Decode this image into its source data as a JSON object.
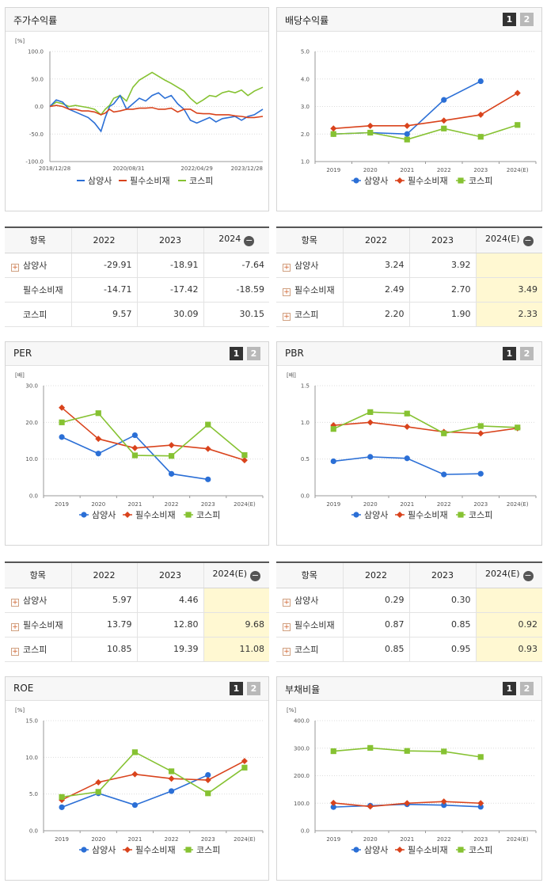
{
  "legend": {
    "items": [
      {
        "name": "삼양사",
        "color": "#2b6fd6",
        "marker": "circle"
      },
      {
        "name": "필수소비재",
        "color": "#d9431c",
        "marker": "diamond"
      },
      {
        "name": "코스피",
        "color": "#86c232",
        "marker": "square"
      }
    ]
  },
  "pager": {
    "p1": "1",
    "p2": "2"
  },
  "plus_icon": "plus-box-icon",
  "minus_icon": "minus-circle-icon",
  "panels": {
    "stock": {
      "title": "주가수익률",
      "unit": "[%]",
      "ytick_labels": [
        "100.0",
        "50.0",
        "0.0",
        "-50.0",
        "-100.0"
      ],
      "xtick_labels": [
        "2018/12/28",
        "2020/08/31",
        "2022/04/29",
        "2023/12/28"
      ]
    },
    "dividend": {
      "title": "배당수익률",
      "unit": "",
      "ytick_labels": [
        "5.0",
        "4.0",
        "3.0",
        "2.0",
        "1.0"
      ]
    },
    "per": {
      "title": "PER",
      "unit": "[배]",
      "ytick_labels": [
        "30.0",
        "20.0",
        "10.0",
        "0.0"
      ]
    },
    "pbr": {
      "title": "PBR",
      "unit": "[배]",
      "ytick_labels": [
        "1.5",
        "1.0",
        "0.5",
        "0.0"
      ]
    },
    "roe": {
      "title": "ROE",
      "unit": "[%]",
      "ytick_labels": [
        "15.0",
        "10.0",
        "5.0",
        "0.0"
      ]
    },
    "debt": {
      "title": "부채비율",
      "unit": "[%]",
      "ytick_labels": [
        "400.0",
        "300.0",
        "200.0",
        "100.0",
        "0.0"
      ]
    }
  },
  "year_labels": [
    "2019",
    "2020",
    "2021",
    "2022",
    "2023",
    "2024(E)"
  ],
  "tables": {
    "stock": {
      "headers": [
        "항목",
        "2022",
        "2023",
        "2024"
      ],
      "rows": [
        {
          "name": "삼양사",
          "plus": true,
          "values": [
            "-29.91",
            "-18.91",
            "-7.64"
          ]
        },
        {
          "name": "필수소비재",
          "plus": false,
          "values": [
            "-14.71",
            "-17.42",
            "-18.59"
          ]
        },
        {
          "name": "코스피",
          "plus": false,
          "values": [
            "9.57",
            "30.09",
            "30.15"
          ]
        }
      ]
    },
    "dividend": {
      "headers": [
        "항목",
        "2022",
        "2023",
        "2024(E)"
      ],
      "rows": [
        {
          "name": "삼양사",
          "plus": true,
          "values": [
            "3.24",
            "3.92",
            ""
          ]
        },
        {
          "name": "필수소비재",
          "plus": true,
          "values": [
            "2.49",
            "2.70",
            "3.49"
          ]
        },
        {
          "name": "코스피",
          "plus": true,
          "values": [
            "2.20",
            "1.90",
            "2.33"
          ]
        }
      ]
    },
    "per": {
      "headers": [
        "항목",
        "2022",
        "2023",
        "2024(E)"
      ],
      "rows": [
        {
          "name": "삼양사",
          "plus": true,
          "values": [
            "5.97",
            "4.46",
            ""
          ]
        },
        {
          "name": "필수소비재",
          "plus": true,
          "values": [
            "13.79",
            "12.80",
            "9.68"
          ]
        },
        {
          "name": "코스피",
          "plus": true,
          "values": [
            "10.85",
            "19.39",
            "11.08"
          ]
        }
      ]
    },
    "pbr": {
      "headers": [
        "항목",
        "2022",
        "2023",
        "2024(E)"
      ],
      "rows": [
        {
          "name": "삼양사",
          "plus": true,
          "values": [
            "0.29",
            "0.30",
            ""
          ]
        },
        {
          "name": "필수소비재",
          "plus": true,
          "values": [
            "0.87",
            "0.85",
            "0.92"
          ]
        },
        {
          "name": "코스피",
          "plus": true,
          "values": [
            "0.85",
            "0.95",
            "0.93"
          ]
        }
      ]
    }
  },
  "chart_data": [
    {
      "id": "stock",
      "type": "line",
      "title": "주가수익률",
      "ylabel": "[%]",
      "ylim": [
        -100,
        100
      ],
      "x_range": [
        "2018/12/28",
        "2023/12/28"
      ],
      "xtick_labels": [
        "2018/12/28",
        "2020/08/31",
        "2022/04/29",
        "2023/12/28"
      ],
      "x_fraction": [
        0,
        0.03,
        0.06,
        0.09,
        0.12,
        0.15,
        0.18,
        0.21,
        0.24,
        0.26,
        0.28,
        0.3,
        0.33,
        0.36,
        0.39,
        0.42,
        0.45,
        0.48,
        0.51,
        0.54,
        0.57,
        0.6,
        0.63,
        0.66,
        0.69,
        0.72,
        0.75,
        0.78,
        0.81,
        0.84,
        0.87,
        0.9,
        0.93,
        0.96,
        1
      ],
      "series": [
        {
          "name": "삼양사",
          "values": [
            0,
            12,
            8,
            -5,
            -10,
            -15,
            -20,
            -30,
            -45,
            -20,
            0,
            5,
            20,
            -5,
            5,
            15,
            10,
            20,
            25,
            15,
            20,
            5,
            -5,
            -25,
            -30,
            -25,
            -20,
            -28,
            -22,
            -20,
            -18,
            -25,
            -18,
            -15,
            -5
          ]
        },
        {
          "name": "필수소비재",
          "values": [
            0,
            2,
            0,
            -5,
            -5,
            -8,
            -8,
            -10,
            -15,
            -12,
            -5,
            -10,
            -8,
            -5,
            -5,
            -3,
            -3,
            -2,
            -5,
            -5,
            -3,
            -10,
            -5,
            -5,
            -12,
            -13,
            -13,
            -15,
            -15,
            -15,
            -17,
            -18,
            -20,
            -20,
            -18
          ]
        },
        {
          "name": "코스피",
          "values": [
            0,
            8,
            5,
            0,
            2,
            0,
            -2,
            -5,
            -15,
            -5,
            2,
            15,
            20,
            10,
            35,
            48,
            55,
            62,
            55,
            48,
            42,
            35,
            28,
            15,
            5,
            12,
            20,
            18,
            25,
            28,
            25,
            30,
            20,
            28,
            35
          ]
        }
      ]
    },
    {
      "id": "dividend",
      "type": "line",
      "title": "배당수익률",
      "ylim": [
        1,
        5
      ],
      "categories": [
        "2019",
        "2020",
        "2021",
        "2022",
        "2023",
        "2024(E)"
      ],
      "series": [
        {
          "name": "삼양사",
          "values": [
            2.0,
            2.05,
            2.0,
            3.24,
            3.92,
            null
          ]
        },
        {
          "name": "필수소비재",
          "values": [
            2.2,
            2.3,
            2.3,
            2.49,
            2.7,
            3.49
          ]
        },
        {
          "name": "코스피",
          "values": [
            2.0,
            2.05,
            1.8,
            2.2,
            1.9,
            2.33
          ]
        }
      ]
    },
    {
      "id": "per",
      "type": "line",
      "title": "PER",
      "ylabel": "[배]",
      "ylim": [
        0,
        30
      ],
      "categories": [
        "2019",
        "2020",
        "2021",
        "2022",
        "2023",
        "2024(E)"
      ],
      "series": [
        {
          "name": "삼양사",
          "values": [
            16.0,
            11.5,
            16.5,
            5.97,
            4.46,
            null
          ]
        },
        {
          "name": "필수소비재",
          "values": [
            24.0,
            15.5,
            13.0,
            13.79,
            12.8,
            9.68
          ]
        },
        {
          "name": "코스피",
          "values": [
            20.0,
            22.5,
            11.0,
            10.85,
            19.39,
            11.08
          ]
        }
      ]
    },
    {
      "id": "pbr",
      "type": "line",
      "title": "PBR",
      "ylabel": "[배]",
      "ylim": [
        0,
        1.5
      ],
      "categories": [
        "2019",
        "2020",
        "2021",
        "2022",
        "2023",
        "2024(E)"
      ],
      "series": [
        {
          "name": "삼양사",
          "values": [
            0.47,
            0.53,
            0.51,
            0.29,
            0.3,
            null
          ]
        },
        {
          "name": "필수소비재",
          "values": [
            0.96,
            1.0,
            0.94,
            0.87,
            0.85,
            0.92
          ]
        },
        {
          "name": "코스피",
          "values": [
            0.91,
            1.14,
            1.12,
            0.85,
            0.95,
            0.93
          ]
        }
      ]
    },
    {
      "id": "roe",
      "type": "line",
      "title": "ROE",
      "ylabel": "[%]",
      "ylim": [
        0,
        15
      ],
      "categories": [
        "2019",
        "2020",
        "2021",
        "2022",
        "2023",
        "2024(E)"
      ],
      "series": [
        {
          "name": "삼양사",
          "values": [
            3.2,
            5.1,
            3.5,
            5.4,
            7.6,
            null
          ]
        },
        {
          "name": "필수소비재",
          "values": [
            4.2,
            6.6,
            7.7,
            7.1,
            6.9,
            9.5
          ]
        },
        {
          "name": "코스피",
          "values": [
            4.6,
            5.3,
            10.7,
            8.1,
            5.1,
            8.6
          ]
        }
      ]
    },
    {
      "id": "debt",
      "type": "line",
      "title": "부채비율",
      "ylabel": "[%]",
      "ylim": [
        0,
        400
      ],
      "categories": [
        "2019",
        "2020",
        "2021",
        "2022",
        "2023",
        "2024(E)"
      ],
      "series": [
        {
          "name": "삼양사",
          "values": [
            86,
            91,
            96,
            93,
            87,
            null
          ]
        },
        {
          "name": "필수소비재",
          "values": [
            101,
            88,
            100,
            106,
            100,
            null
          ]
        },
        {
          "name": "코스피",
          "values": [
            289,
            301,
            290,
            288,
            268,
            null
          ]
        }
      ]
    }
  ]
}
